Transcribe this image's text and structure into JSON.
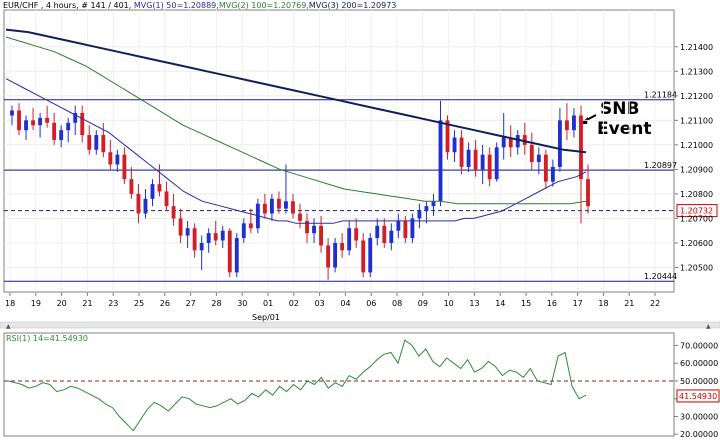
{
  "header": {
    "symbol": "EUR/CHF",
    "text": "EUR/CHF , 4 hours, # 141 / 401, ",
    "mvg1": "MVG(1) 50=1.20889,",
    "mvg2": "MVG(2) 100=1.20769,",
    "mvg3": "MVG(3) 200=1.20973"
  },
  "colors": {
    "background": "#ffffff",
    "up_candle": "#1f2fd0",
    "down_candle": "#d21f27",
    "mvg1": "#2a2aa8",
    "mvg2": "#2e7d32",
    "mvg3": "#10205a",
    "rsi": "#2e8b3a",
    "levels": "#1a1a8c",
    "marker_current": "#cc0000"
  },
  "annotation": {
    "line1": "SNB",
    "line2": "Event"
  },
  "chart_data": [
    {
      "type": "candlestick",
      "title": "EUR/CHF , 4 hours",
      "xlabel": "",
      "ylabel": "",
      "ylim": [
        1.204,
        1.2155
      ],
      "x_tick_labels": [
        "18",
        "19",
        "20",
        "21",
        "23",
        "25",
        "26",
        "27",
        "28",
        "30",
        "01",
        "02",
        "03",
        "04",
        "06",
        "08",
        "09",
        "10",
        "13",
        "14",
        "15",
        "16",
        "17",
        "18",
        "21",
        "22"
      ],
      "x_tick_sub": "Sep/01",
      "y_tick_labels": [
        "1.21400",
        "1.21300",
        "1.21200",
        "1.21100",
        "1.21000",
        "1.20900",
        "1.20800",
        "1.20700",
        "1.20600",
        "1.20500"
      ],
      "y_tick_values": [
        1.214,
        1.213,
        1.212,
        1.211,
        1.21,
        1.209,
        1.208,
        1.207,
        1.206,
        1.205
      ],
      "horizontal_levels": [
        {
          "label": "1.21184",
          "value": 1.21184,
          "style": "solid"
        },
        {
          "label": "1.20897",
          "value": 1.20897,
          "style": "solid"
        },
        {
          "label": "1.20732",
          "value": 1.20732,
          "style": "dashed"
        },
        {
          "label": "1.20444",
          "value": 1.20444,
          "style": "solid"
        }
      ],
      "candles": [
        [
          1.2112,
          1.2116,
          1.2108,
          1.2114
        ],
        [
          1.2114,
          1.2117,
          1.2104,
          1.2106
        ],
        [
          1.2106,
          1.2112,
          1.2102,
          1.211
        ],
        [
          1.211,
          1.2115,
          1.2106,
          1.2108
        ],
        [
          1.2108,
          1.2113,
          1.2103,
          1.2111
        ],
        [
          1.2111,
          1.2116,
          1.2107,
          1.2109
        ],
        [
          1.2109,
          1.2113,
          1.21,
          1.2102
        ],
        [
          1.2102,
          1.2108,
          1.2099,
          1.2106
        ],
        [
          1.2106,
          1.2111,
          1.2101,
          1.2109
        ],
        [
          1.2109,
          1.2116,
          1.2104,
          1.2113
        ],
        [
          1.2113,
          1.2116,
          1.2101,
          1.2104
        ],
        [
          1.2104,
          1.2108,
          1.2096,
          1.2098
        ],
        [
          1.2098,
          1.2106,
          1.2096,
          1.2104
        ],
        [
          1.2104,
          1.2109,
          1.2095,
          1.2097
        ],
        [
          1.2097,
          1.2102,
          1.209,
          1.2092
        ],
        [
          1.2092,
          1.2098,
          1.2089,
          1.2096
        ],
        [
          1.2096,
          1.2099,
          1.2084,
          1.2086
        ],
        [
          1.2086,
          1.2091,
          1.2078,
          1.208
        ],
        [
          1.208,
          1.2084,
          1.2068,
          1.2072
        ],
        [
          1.2072,
          1.2082,
          1.207,
          1.2078
        ],
        [
          1.2078,
          1.2086,
          1.2075,
          1.2084
        ],
        [
          1.2084,
          1.2092,
          1.2079,
          1.2081
        ],
        [
          1.2081,
          1.2085,
          1.2073,
          1.2075
        ],
        [
          1.2075,
          1.208,
          1.2067,
          1.207
        ],
        [
          1.207,
          1.2074,
          1.206,
          1.2063
        ],
        [
          1.2063,
          1.2069,
          1.2058,
          1.2066
        ],
        [
          1.2066,
          1.2068,
          1.2054,
          1.2057
        ],
        [
          1.2057,
          1.2063,
          1.2049,
          1.206
        ],
        [
          1.206,
          1.2066,
          1.2056,
          1.2064
        ],
        [
          1.2064,
          1.2069,
          1.2059,
          1.2061
        ],
        [
          1.2061,
          1.2067,
          1.2058,
          1.2065
        ],
        [
          1.2065,
          1.2066,
          1.2046,
          1.2048
        ],
        [
          1.2048,
          1.2064,
          1.2046,
          1.2062
        ],
        [
          1.2062,
          1.207,
          1.206,
          1.2068
        ],
        [
          1.2068,
          1.2074,
          1.2064,
          1.2066
        ],
        [
          1.2066,
          1.2078,
          1.2064,
          1.2076
        ],
        [
          1.2076,
          1.208,
          1.207,
          1.2072
        ],
        [
          1.2072,
          1.208,
          1.2069,
          1.2078
        ],
        [
          1.2078,
          1.2081,
          1.2072,
          1.2074
        ],
        [
          1.2074,
          1.2092,
          1.2072,
          1.2077
        ],
        [
          1.2077,
          1.208,
          1.207,
          1.2072
        ],
        [
          1.2072,
          1.2076,
          1.2066,
          1.2069
        ],
        [
          1.2069,
          1.2072,
          1.206,
          1.2064
        ],
        [
          1.2064,
          1.207,
          1.206,
          1.2067
        ],
        [
          1.2067,
          1.2071,
          1.2056,
          1.2059
        ],
        [
          1.2059,
          1.2062,
          1.2045,
          1.205
        ],
        [
          1.205,
          1.2062,
          1.2048,
          1.206
        ],
        [
          1.206,
          1.2064,
          1.2054,
          1.2057
        ],
        [
          1.2057,
          1.2069,
          1.2055,
          1.2066
        ],
        [
          1.2066,
          1.207,
          1.2058,
          1.2061
        ],
        [
          1.2061,
          1.2064,
          1.2046,
          1.2048
        ],
        [
          1.2048,
          1.2064,
          1.2046,
          1.2062
        ],
        [
          1.2062,
          1.207,
          1.2059,
          1.2067
        ],
        [
          1.2067,
          1.207,
          1.2058,
          1.206
        ],
        [
          1.206,
          1.2068,
          1.2057,
          1.2065
        ],
        [
          1.2065,
          1.2072,
          1.2062,
          1.2069
        ],
        [
          1.2069,
          1.2071,
          1.206,
          1.2062
        ],
        [
          1.2062,
          1.2072,
          1.206,
          1.207
        ],
        [
          1.207,
          1.2076,
          1.2066,
          1.2073
        ],
        [
          1.2073,
          1.2077,
          1.2068,
          1.2075
        ],
        [
          1.2075,
          1.208,
          1.2071,
          1.2077
        ],
        [
          1.2077,
          1.2118,
          1.2075,
          1.211
        ],
        [
          1.211,
          1.2112,
          1.2094,
          1.2097
        ],
        [
          1.2097,
          1.2106,
          1.2093,
          1.2103
        ],
        [
          1.2103,
          1.2106,
          1.2088,
          1.2091
        ],
        [
          1.2091,
          1.2101,
          1.2089,
          1.2098
        ],
        [
          1.2098,
          1.2102,
          1.2087,
          1.209
        ],
        [
          1.209,
          1.21,
          1.2084,
          1.2096
        ],
        [
          1.2096,
          1.2099,
          1.2083,
          1.2086
        ],
        [
          1.2086,
          1.2101,
          1.2085,
          1.2099
        ],
        [
          1.2099,
          1.2113,
          1.2094,
          1.2103
        ],
        [
          1.2103,
          1.2108,
          1.2095,
          1.2099
        ],
        [
          1.2099,
          1.2106,
          1.2096,
          1.2104
        ],
        [
          1.2104,
          1.2109,
          1.2096,
          1.21
        ],
        [
          1.21,
          1.2105,
          1.209,
          1.2093
        ],
        [
          1.2093,
          1.2099,
          1.2088,
          1.2096
        ],
        [
          1.2096,
          1.2098,
          1.2082,
          1.2085
        ],
        [
          1.2085,
          1.2094,
          1.2083,
          1.2091
        ],
        [
          1.2091,
          1.2115,
          1.2089,
          1.211
        ],
        [
          1.211,
          1.2117,
          1.2102,
          1.2106
        ],
        [
          1.2106,
          1.2115,
          1.2103,
          1.2112
        ],
        [
          1.2112,
          1.2116,
          1.2068,
          1.2086
        ],
        [
          1.2086,
          1.2092,
          1.2072,
          1.2075
        ]
      ],
      "series": [
        {
          "name": "MVG(1) 50",
          "values": [
            1.2127,
            1.2125,
            1.2123,
            1.2121,
            1.2119,
            1.2117,
            1.2115,
            1.2113,
            1.2111,
            1.2109,
            1.2107,
            1.2105,
            1.2102,
            1.2099,
            1.2096,
            1.2093,
            1.209,
            1.2087,
            1.2084,
            1.2081,
            1.2079,
            1.2077,
            1.2076,
            1.2075,
            1.2074,
            1.2073,
            1.2072,
            1.2071,
            1.207,
            1.2069,
            1.2069,
            1.2068,
            1.2068,
            1.2068,
            1.2068,
            1.2068,
            1.2069,
            1.2069,
            1.2069,
            1.2069,
            1.2069,
            1.2069,
            1.2069,
            1.2069,
            1.2069,
            1.2069,
            1.2069,
            1.2069,
            1.2069,
            1.207,
            1.207,
            1.2071,
            1.2072,
            1.2073,
            1.2075,
            1.2077,
            1.2079,
            1.2081,
            1.2083,
            1.2085,
            1.2086,
            1.2087,
            1.2089
          ]
        },
        {
          "name": "MVG(2) 100",
          "values": [
            1.2144,
            1.2142,
            1.214,
            1.2138,
            1.2135,
            1.2132,
            1.2128,
            1.2124,
            1.212,
            1.2116,
            1.2112,
            1.2108,
            1.2105,
            1.2102,
            1.2099,
            1.2096,
            1.2093,
            1.209,
            1.2088,
            1.2086,
            1.2084,
            1.2082,
            1.2081,
            1.208,
            1.2079,
            1.2078,
            1.2077,
            1.2077,
            1.2076,
            1.2076,
            1.2076,
            1.2076,
            1.2076,
            1.2076,
            1.2076,
            1.2076,
            1.2077
          ]
        },
        {
          "name": "MVG(3) 200",
          "values": [
            1.2147,
            1.2146,
            1.2144,
            1.2142,
            1.214,
            1.2138,
            1.2136,
            1.2134,
            1.2132,
            1.213,
            1.2128,
            1.2126,
            1.2124,
            1.2122,
            1.212,
            1.2118,
            1.2116,
            1.2114,
            1.2112,
            1.211,
            1.2108,
            1.2106,
            1.2104,
            1.2102,
            1.21,
            1.2098,
            1.2097
          ]
        }
      ]
    },
    {
      "type": "line",
      "title": "RSI(1) 14=41.54930",
      "xlabel": "",
      "ylabel": "",
      "ylim": [
        19,
        77
      ],
      "y_tick_labels": [
        "70.00000",
        "60.00000",
        "50.00000",
        "40.00000",
        "30.00000",
        "20.00000"
      ],
      "y_tick_values": [
        70,
        60,
        50,
        40,
        30,
        20
      ],
      "current_label": "41.54930",
      "reference_level": 50,
      "series": [
        {
          "name": "RSI(1) 14",
          "values": [
            50,
            49,
            48,
            46,
            47,
            49,
            48,
            44,
            45,
            47,
            46,
            44,
            42,
            40,
            37,
            35,
            30,
            26,
            22,
            28,
            34,
            38,
            36,
            33,
            37,
            41,
            40,
            37,
            36,
            35,
            36,
            38,
            40,
            37,
            39,
            43,
            41,
            45,
            42,
            47,
            44,
            48,
            45,
            50,
            48,
            52,
            46,
            49,
            47,
            53,
            51,
            55,
            58,
            62,
            65,
            66,
            60,
            73,
            70,
            64,
            68,
            61,
            58,
            63,
            60,
            57,
            62,
            55,
            57,
            61,
            58,
            53,
            56,
            55,
            52,
            57,
            50,
            49,
            48,
            64,
            66,
            47,
            40,
            42
          ]
        }
      ]
    }
  ]
}
